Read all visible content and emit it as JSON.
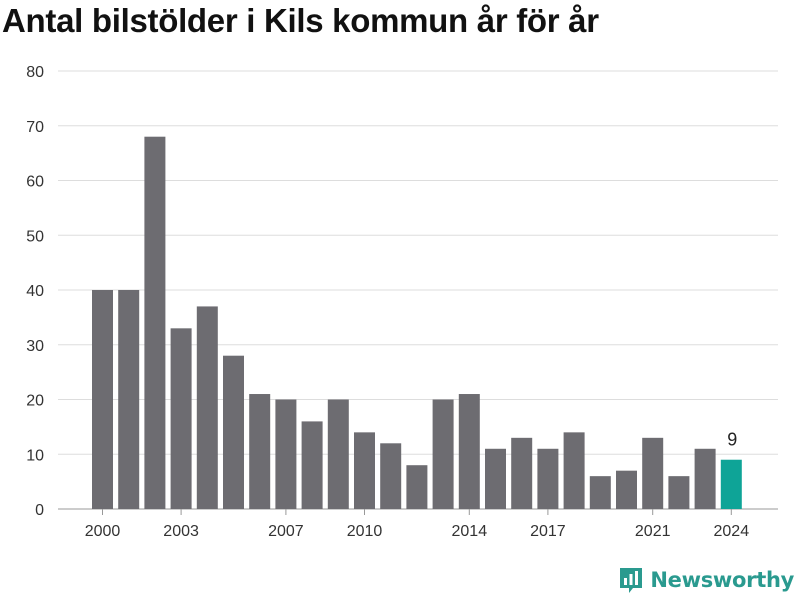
{
  "header": {
    "title": "Antal bilstölder i Kils kommun år för år"
  },
  "branding": {
    "name": "Newsworthy",
    "icon": "bar-chart-logo-icon",
    "color": "#2a9a8f"
  },
  "chart_data": {
    "type": "bar",
    "categories": [
      "2000",
      "2001",
      "2002",
      "2003",
      "2004",
      "2005",
      "2006",
      "2007",
      "2008",
      "2009",
      "2010",
      "2011",
      "2012",
      "2013",
      "2014",
      "2015",
      "2016",
      "2017",
      "2018",
      "2019",
      "2020",
      "2021",
      "2022",
      "2023",
      "2024"
    ],
    "values": [
      40,
      40,
      68,
      33,
      37,
      28,
      21,
      20,
      16,
      20,
      14,
      12,
      8,
      20,
      21,
      11,
      13,
      11,
      14,
      6,
      7,
      13,
      6,
      11,
      9
    ],
    "title": "Antal bilstölder i Kils kommun år för år",
    "xlabel": "",
    "ylabel": "",
    "ylim": [
      0,
      80
    ],
    "yticks": [
      "0",
      "10",
      "20",
      "30",
      "40",
      "50",
      "60",
      "70",
      "80"
    ],
    "xticks": [
      "2000",
      "2003",
      "2007",
      "2010",
      "2014",
      "2017",
      "2021",
      "2024"
    ],
    "highlight": {
      "category": "2024",
      "label": "9"
    },
    "colors": {
      "bar": "#6d6c71",
      "highlight": "#0ea497",
      "grid": "#dddddd"
    },
    "grid": true,
    "legend": "none"
  }
}
